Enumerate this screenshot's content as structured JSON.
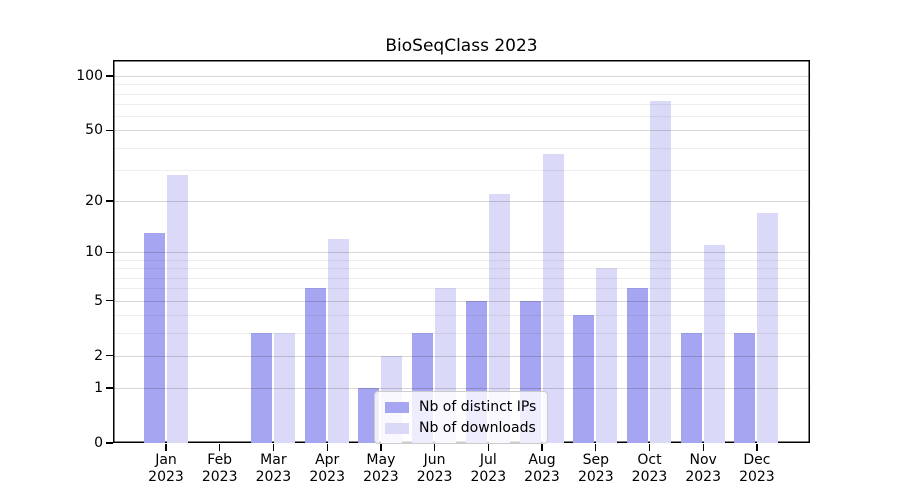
{
  "title": "BioSeqClass 2023",
  "chart_data": {
    "type": "bar",
    "title": "BioSeqClass 2023",
    "categories": [
      "Jan",
      "Feb",
      "Mar",
      "Apr",
      "May",
      "Jun",
      "Jul",
      "Aug",
      "Sep",
      "Oct",
      "Nov",
      "Dec"
    ],
    "category_year": "2023",
    "series": [
      {
        "name": "Nb of distinct IPs",
        "color": "#a5a5f2",
        "values": [
          13,
          0,
          3,
          6,
          1,
          3,
          5,
          5,
          4,
          6,
          3,
          3
        ]
      },
      {
        "name": "Nb of downloads",
        "color": "#dadaf8",
        "values": [
          28,
          0,
          3,
          12,
          2,
          6,
          22,
          37,
          8,
          73,
          11,
          17
        ]
      }
    ],
    "y_scale": "log1p",
    "y_ticks": [
      0,
      1,
      2,
      5,
      10,
      20,
      50,
      100
    ],
    "y_minor_gridlines": [
      3,
      4,
      6,
      7,
      8,
      9,
      30,
      40,
      60,
      70,
      80,
      90
    ],
    "ylim": [
      0,
      122
    ],
    "grid": true,
    "legend_position": "lower-center"
  },
  "colors": {
    "axis": "#000000",
    "major_grid": "#d6d6d6",
    "minor_grid": "#ececec",
    "legend_border": "#cccccc"
  }
}
